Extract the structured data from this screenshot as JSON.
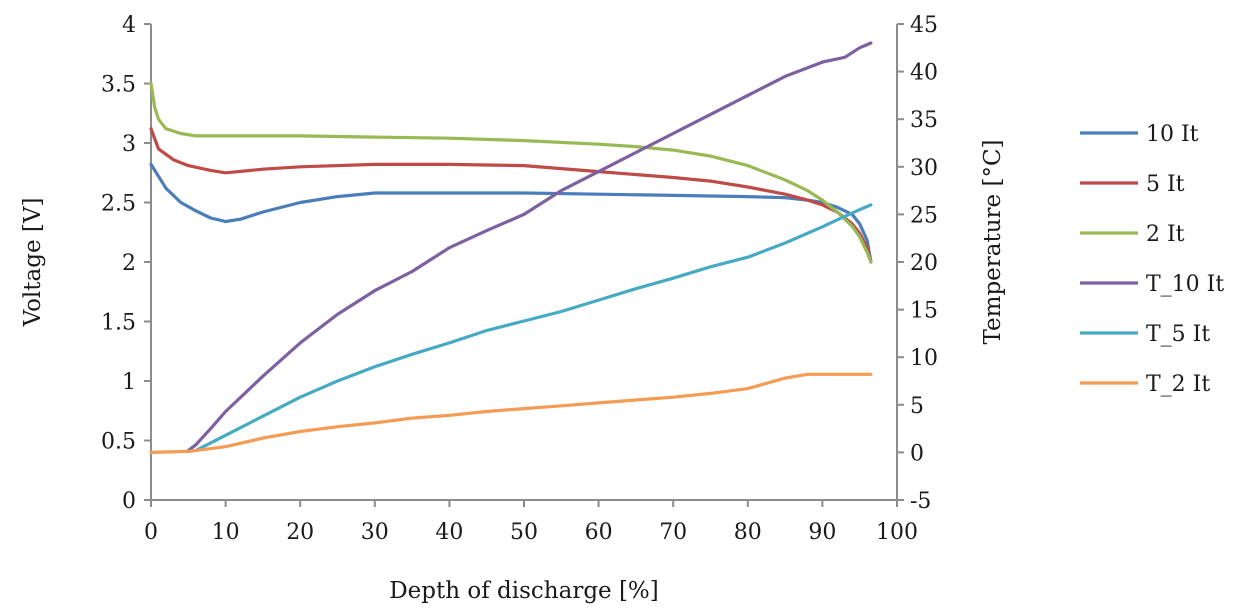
{
  "chart_data": {
    "type": "line",
    "xlabel": "Depth of discharge [%]",
    "ylabel": "Voltage [V]",
    "y2label": "Temperature [°C]",
    "xlim": [
      0,
      100
    ],
    "ylim": [
      0,
      4
    ],
    "y2lim": [
      -5,
      45
    ],
    "x_ticks": [
      0,
      10,
      20,
      30,
      40,
      50,
      60,
      70,
      80,
      90,
      100
    ],
    "y_ticks": [
      0,
      0.5,
      1,
      1.5,
      2,
      2.5,
      3,
      3.5,
      4
    ],
    "y2_ticks": [
      -5,
      0,
      5,
      10,
      15,
      20,
      25,
      30,
      35,
      40,
      45
    ],
    "grid": false,
    "legend_position": "right",
    "series": [
      {
        "name": "10 It",
        "axis": "left",
        "color": "#4a7ebb",
        "x": [
          0,
          2,
          4,
          6,
          8,
          10,
          12,
          15,
          20,
          25,
          30,
          40,
          50,
          60,
          70,
          80,
          85,
          88,
          90,
          92,
          94,
          95,
          96,
          96.5
        ],
        "y": [
          2.82,
          2.62,
          2.5,
          2.43,
          2.37,
          2.34,
          2.36,
          2.42,
          2.5,
          2.55,
          2.58,
          2.58,
          2.58,
          2.57,
          2.56,
          2.55,
          2.54,
          2.52,
          2.5,
          2.46,
          2.4,
          2.32,
          2.18,
          2.0
        ]
      },
      {
        "name": "5 It",
        "axis": "left",
        "color": "#be4b48",
        "x": [
          0,
          1,
          3,
          5,
          8,
          10,
          15,
          20,
          30,
          40,
          50,
          60,
          70,
          75,
          80,
          85,
          88,
          90,
          92,
          94,
          95,
          96,
          96.5
        ],
        "y": [
          3.12,
          2.95,
          2.86,
          2.81,
          2.77,
          2.75,
          2.78,
          2.8,
          2.82,
          2.82,
          2.81,
          2.76,
          2.71,
          2.68,
          2.63,
          2.57,
          2.52,
          2.48,
          2.42,
          2.32,
          2.24,
          2.12,
          2.0
        ]
      },
      {
        "name": "2 It",
        "axis": "left",
        "color": "#98b954",
        "x": [
          0,
          0.5,
          1,
          2,
          4,
          6,
          10,
          20,
          30,
          40,
          50,
          60,
          65,
          70,
          75,
          80,
          85,
          88,
          90,
          92,
          94,
          95,
          96,
          96.5
        ],
        "y": [
          3.5,
          3.3,
          3.2,
          3.12,
          3.08,
          3.06,
          3.06,
          3.06,
          3.05,
          3.04,
          3.02,
          2.99,
          2.97,
          2.94,
          2.89,
          2.81,
          2.69,
          2.6,
          2.52,
          2.42,
          2.3,
          2.21,
          2.08,
          2.0
        ]
      },
      {
        "name": "T_10 It",
        "axis": "right",
        "color": "#7d60a0",
        "x": [
          5,
          6,
          8,
          10,
          15,
          20,
          25,
          30,
          35,
          40,
          45,
          50,
          55,
          60,
          65,
          70,
          75,
          80,
          85,
          90,
          93,
          95,
          96.5
        ],
        "y": [
          0.2,
          0.8,
          2.5,
          4.3,
          8.0,
          11.5,
          14.5,
          17.0,
          19.0,
          21.5,
          23.3,
          25.0,
          27.5,
          29.5,
          31.5,
          33.5,
          35.5,
          37.5,
          39.5,
          41.0,
          41.5,
          42.5,
          43.0
        ]
      },
      {
        "name": "T_5 It",
        "axis": "right",
        "color": "#46aac5",
        "x": [
          6,
          8,
          10,
          15,
          20,
          25,
          30,
          35,
          40,
          45,
          50,
          55,
          60,
          65,
          70,
          75,
          80,
          85,
          90,
          93,
          95,
          96.5
        ],
        "y": [
          0.2,
          1.0,
          1.8,
          3.8,
          5.8,
          7.5,
          9.0,
          10.3,
          11.5,
          12.8,
          13.8,
          14.8,
          16.0,
          17.2,
          18.3,
          19.5,
          20.5,
          22.0,
          23.7,
          24.8,
          25.5,
          26.0
        ]
      },
      {
        "name": "T_2 It",
        "axis": "right",
        "color": "#f49b54",
        "x": [
          0,
          5,
          10,
          15,
          20,
          25,
          30,
          35,
          40,
          45,
          50,
          55,
          60,
          65,
          70,
          75,
          80,
          85,
          88,
          90,
          92,
          94,
          96.5
        ],
        "y": [
          0.0,
          0.1,
          0.6,
          1.5,
          2.2,
          2.7,
          3.1,
          3.6,
          3.9,
          4.3,
          4.6,
          4.9,
          5.2,
          5.5,
          5.8,
          6.2,
          6.7,
          7.8,
          8.2,
          8.2,
          8.2,
          8.2,
          8.2
        ]
      }
    ]
  }
}
